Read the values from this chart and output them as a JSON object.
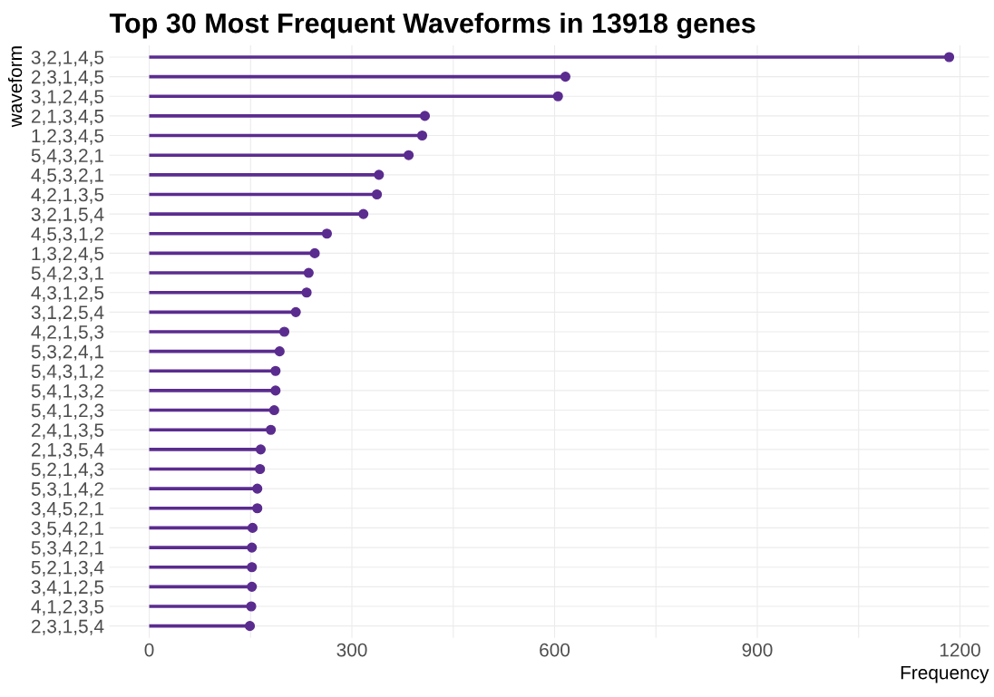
{
  "chart_data": {
    "type": "lollipop",
    "orientation": "horizontal",
    "title": "Top 30 Most Frequent Waveforms in 13918 genes",
    "xlabel": "Frequency",
    "ylabel": "waveform",
    "categories": [
      "3,2,1,4,5",
      "2,3,1,4,5",
      "3,1,2,4,5",
      "2,1,3,4,5",
      "1,2,3,4,5",
      "5,4,3,2,1",
      "4,5,3,2,1",
      "4,2,1,3,5",
      "3,2,1,5,4",
      "4,5,3,1,2",
      "1,3,2,4,5",
      "5,4,2,3,1",
      "4,3,1,2,5",
      "3,1,2,5,4",
      "4,2,1,5,3",
      "5,3,2,4,1",
      "5,4,3,1,2",
      "5,4,1,3,2",
      "5,4,1,2,3",
      "2,4,1,3,5",
      "2,1,3,5,4",
      "5,2,1,4,3",
      "5,3,1,4,2",
      "3,4,5,2,1",
      "3,5,4,2,1",
      "5,3,4,2,1",
      "5,2,1,3,4",
      "3,4,1,2,5",
      "4,1,2,3,5",
      "2,3,1,5,4"
    ],
    "values": [
      1184,
      616,
      605,
      408,
      404,
      384,
      340,
      337,
      317,
      263,
      245,
      236,
      233,
      217,
      200,
      193,
      187,
      187,
      185,
      180,
      165,
      164,
      160,
      160,
      153,
      152,
      152,
      152,
      151,
      149
    ],
    "color": "#5b2c8f",
    "marker": "circle",
    "grid": true,
    "xlim": [
      -59,
      1243
    ],
    "xticks": [
      0,
      {
        "value": 150,
        "label": null
      },
      300,
      {
        "value": 450,
        "label": null
      },
      600,
      {
        "value": 750,
        "label": null
      },
      900,
      {
        "value": 1050,
        "label": null
      },
      1200
    ]
  }
}
